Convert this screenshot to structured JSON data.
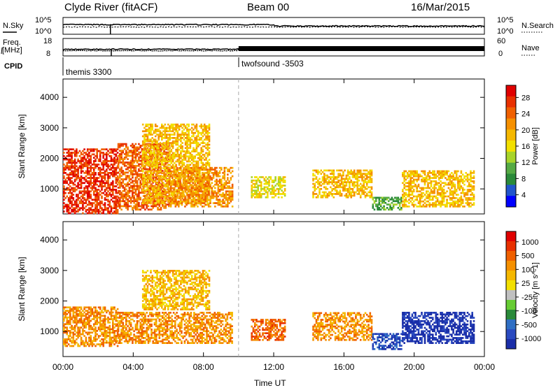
{
  "header": {
    "station": "Clyde River (fitACF)",
    "beam": "Beam 00",
    "date": "16/Mar/2015"
  },
  "strip_panels": {
    "nsky_label": "N.Sky",
    "nsearch_label": "N.Search",
    "freq_label_1": "Freq.",
    "freq_label_2": "[MHz]",
    "nave_label": "Nave",
    "cpid_label": "CPID",
    "nsky_ticks": [
      "10^5",
      "10^0"
    ],
    "nsearch_ticks": [
      "10^5",
      "10^0"
    ],
    "freq_ticks": [
      "18",
      "8"
    ],
    "nave_ticks": [
      "60",
      "0"
    ]
  },
  "cpid_programs": [
    {
      "name": "themis 3300",
      "start_hour": 0
    },
    {
      "name": "twofsound -3503",
      "start_hour": 10
    }
  ],
  "time_axis": {
    "label": "Time UT",
    "ticks": [
      "00:00",
      "04:00",
      "08:00",
      "12:00",
      "16:00",
      "20:00",
      "00:00"
    ],
    "range_hours": [
      0,
      24
    ]
  },
  "range_axis": {
    "label": "Slant Range [km]",
    "ticks": [
      "1000",
      "2000",
      "3000",
      "4000"
    ],
    "range_km": [
      180,
      4600
    ]
  },
  "power_colorbar": {
    "label": "Power [dB]",
    "ticks": [
      "4",
      "8",
      "12",
      "16",
      "20",
      "24",
      "28"
    ],
    "colors": [
      "#0000ff",
      "#2255cc",
      "#2a8a3a",
      "#55aa44",
      "#a8d42a",
      "#f2e000",
      "#f5b800",
      "#f59000",
      "#f06000",
      "#e83000",
      "#e00000"
    ]
  },
  "velocity_colorbar": {
    "label": "Velocity [m s^-1]",
    "ticks": [
      "1000",
      "500",
      "100",
      "25",
      "-25",
      "-100",
      "-500",
      "-1000"
    ],
    "colors": [
      "#1a2ea8",
      "#2a4ac0",
      "#2f6fc4",
      "#2a8a3a",
      "#66cc33",
      "#c0c0c0",
      "#f2e000",
      "#f5b800",
      "#f59000",
      "#f06000",
      "#e83000",
      "#e00000"
    ]
  },
  "chart_data": [
    {
      "type": "heatmap",
      "title": "Power [dB]",
      "xlabel": "Time UT",
      "ylabel": "Slant Range [km]",
      "xlim": [
        0,
        24
      ],
      "ylim": [
        180,
        4600
      ],
      "regions": [
        {
          "t": [
            0.0,
            3.1
          ],
          "r": [
            180,
            2300
          ],
          "level": 9
        },
        {
          "t": [
            3.1,
            6.0
          ],
          "r": [
            300,
            2500
          ],
          "level": 8
        },
        {
          "t": [
            4.5,
            8.3
          ],
          "r": [
            500,
            3100
          ],
          "level": 6
        },
        {
          "t": [
            6.0,
            9.6
          ],
          "r": [
            400,
            1700
          ],
          "level": 7
        },
        {
          "t": [
            10.7,
            12.6
          ],
          "r": [
            700,
            1400
          ],
          "level": 5
        },
        {
          "t": [
            14.2,
            17.6
          ],
          "r": [
            700,
            1600
          ],
          "level": 6
        },
        {
          "t": [
            17.6,
            19.3
          ],
          "r": [
            300,
            700
          ],
          "level": 3
        },
        {
          "t": [
            19.3,
            23.4
          ],
          "r": [
            400,
            1600
          ],
          "level": 6
        }
      ]
    },
    {
      "type": "heatmap",
      "title": "Velocity [m s^-1]",
      "xlabel": "Time UT",
      "ylabel": "Slant Range [km]",
      "xlim": [
        0,
        24
      ],
      "ylim": [
        180,
        4600
      ],
      "regions": [
        {
          "t": [
            0.0,
            3.1
          ],
          "r": [
            500,
            1800
          ],
          "level": 8
        },
        {
          "t": [
            3.1,
            9.6
          ],
          "r": [
            600,
            1600
          ],
          "level": 8
        },
        {
          "t": [
            4.5,
            8.3
          ],
          "r": [
            1700,
            3000
          ],
          "level": 7
        },
        {
          "t": [
            10.7,
            12.6
          ],
          "r": [
            700,
            1400
          ],
          "level": 9
        },
        {
          "t": [
            14.2,
            17.6
          ],
          "r": [
            700,
            1600
          ],
          "level": 8
        },
        {
          "t": [
            17.6,
            19.3
          ],
          "r": [
            400,
            900
          ],
          "level": 1
        },
        {
          "t": [
            19.3,
            23.4
          ],
          "r": [
            600,
            1600
          ],
          "level": 0
        }
      ]
    }
  ]
}
